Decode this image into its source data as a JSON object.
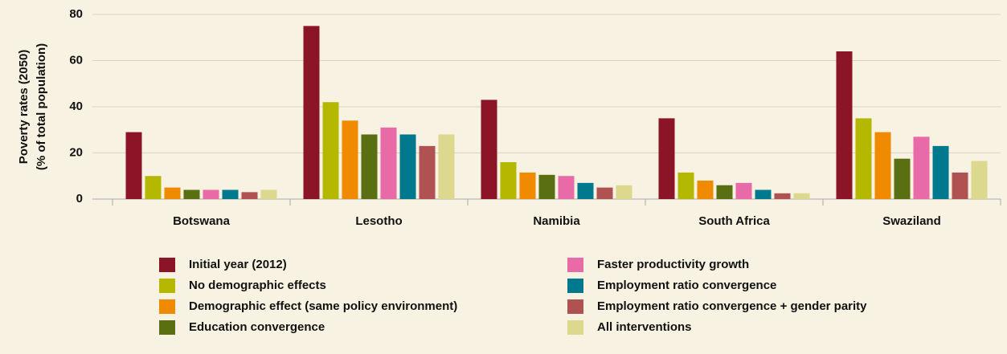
{
  "chart_data": {
    "type": "bar",
    "y_label": [
      "Poverty rates (2050)",
      "(% of total population)"
    ],
    "categories": [
      "Botswana",
      "Lesotho",
      "Namibia",
      "South Africa",
      "Swaziland"
    ],
    "series": [
      {
        "name": "Initial year (2012)",
        "color": "#8b1427",
        "values": [
          29,
          75,
          43,
          35,
          64
        ]
      },
      {
        "name": "No demographic effects",
        "color": "#b5b800",
        "values": [
          10,
          42,
          16,
          11.5,
          35
        ]
      },
      {
        "name": "Demographic effect (same policy environment)",
        "color": "#f08a00",
        "values": [
          5,
          34,
          11.5,
          8,
          29
        ]
      },
      {
        "name": "Education convergence",
        "color": "#5a6e12",
        "values": [
          4,
          28,
          10.5,
          6,
          17.5
        ]
      },
      {
        "name": "Faster productivity growth",
        "color": "#e86aa6",
        "values": [
          4,
          31,
          10,
          7,
          27
        ]
      },
      {
        "name": "Employment ratio convergence",
        "color": "#00798f",
        "values": [
          4,
          28,
          7,
          4,
          23
        ]
      },
      {
        "name": "Employment ratio convergence + gender parity",
        "color": "#b05252",
        "values": [
          3,
          23,
          5,
          2.5,
          11.5
        ]
      },
      {
        "name": "All interventions",
        "color": "#dcd88e",
        "values": [
          4,
          28,
          6,
          2.5,
          16.5
        ]
      }
    ],
    "ylim": [
      0,
      80
    ],
    "yticks": [
      0,
      20,
      40,
      60,
      80
    ],
    "grid": true
  }
}
